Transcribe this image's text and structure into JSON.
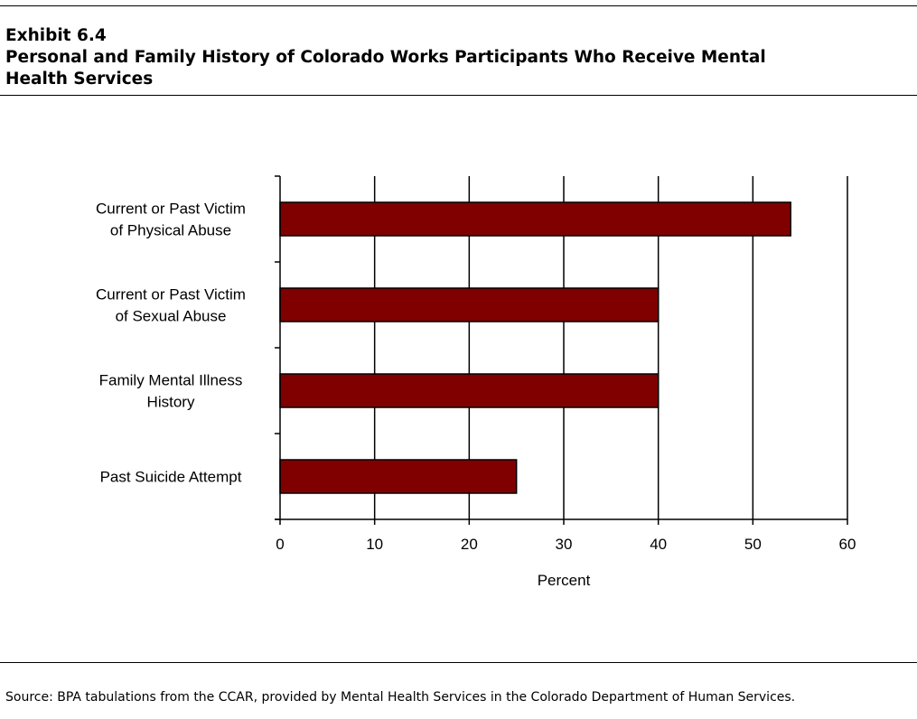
{
  "header": {
    "exhibit_number": "Exhibit 6.4",
    "title_line1": "Personal and Family History of Colorado Works Participants Who Receive Mental",
    "title_line2": "Health Services"
  },
  "chart_data": {
    "type": "bar",
    "orientation": "horizontal",
    "categories": [
      [
        "Current or Past Victim",
        "of Physical Abuse"
      ],
      [
        "Current or Past Victim",
        "of Sexual Abuse"
      ],
      [
        "Family Mental Illness",
        "History"
      ],
      [
        "Past Suicide Attempt"
      ]
    ],
    "values": [
      54,
      40,
      40,
      25
    ],
    "xlabel": "Percent",
    "ylabel": "",
    "xlim": [
      0,
      60
    ],
    "xticks": [
      0,
      10,
      20,
      30,
      40,
      50,
      60
    ],
    "grid": "vertical",
    "bar_color": "#800000"
  },
  "footer": {
    "source": "Source:  BPA tabulations from the CCAR, provided by Mental Health Services in the Colorado Department of Human Services."
  }
}
